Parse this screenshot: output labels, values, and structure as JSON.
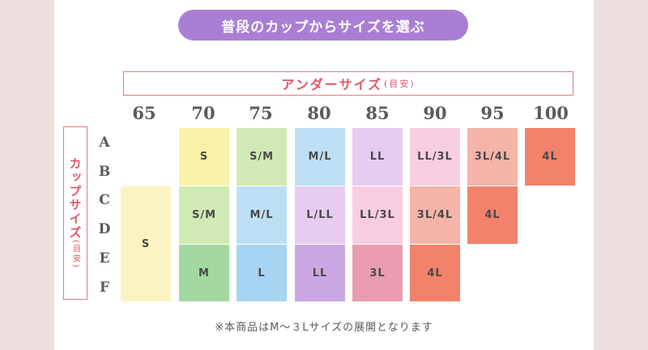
{
  "title": "普段のカップからサイズを選ぶ",
  "under_label": "アンダーサイズ",
  "under_sub": "(目安)",
  "cup_label": "カップサイズ",
  "cup_sub": "(目安)",
  "columns": [
    "65",
    "70",
    "75",
    "80",
    "85",
    "90",
    "95",
    "100"
  ],
  "rows": [
    "A",
    "B",
    "C",
    "D",
    "E",
    "F"
  ],
  "cells": [
    {
      "text": "S",
      "color": "#fbf4c2"
    },
    {
      "text": "S",
      "color": "#faf2a6"
    },
    {
      "text": "S/M",
      "color": "#d1e9b4"
    },
    {
      "text": "M/L",
      "color": "#bddff4"
    },
    {
      "text": "LL",
      "color": "#e5ccf0"
    },
    {
      "text": "LL/3L",
      "color": "#f9cde0"
    },
    {
      "text": "3L/4L",
      "color": "#f4b5a8"
    },
    {
      "text": "4L",
      "color": "#f2826c"
    },
    {
      "text": "S/M",
      "color": "#d1e9b4"
    },
    {
      "text": "M/L",
      "color": "#bddff4"
    },
    {
      "text": "L/LL",
      "color": "#e5ccf0"
    },
    {
      "text": "LL/3L",
      "color": "#f9cde0"
    },
    {
      "text": "3L/4L",
      "color": "#f4b5a8"
    },
    {
      "text": "4L",
      "color": "#f2826c"
    },
    {
      "text": "M",
      "color": "#a3d9a0"
    },
    {
      "text": "L",
      "color": "#a6d4f2"
    },
    {
      "text": "LL",
      "color": "#cba8e3"
    },
    {
      "text": "3L",
      "color": "#ea9cb2"
    },
    {
      "text": "4L",
      "color": "#f2826c"
    }
  ],
  "note": "※本商品はM〜３Lサイズの展開となります"
}
